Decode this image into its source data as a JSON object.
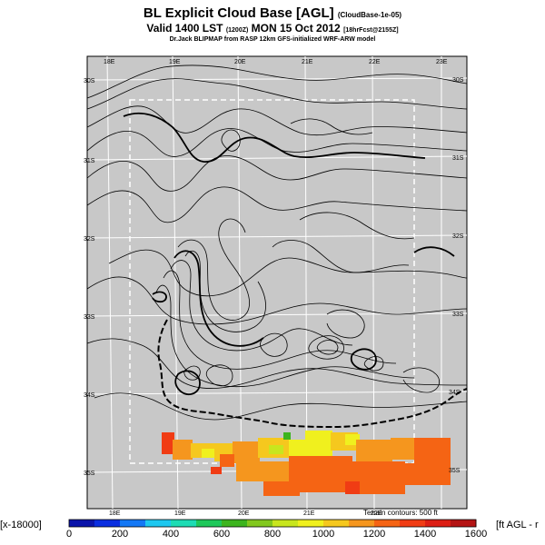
{
  "header": {
    "title": "BL Explicit Cloud Base [AGL]",
    "title_note": "(CloudBase-1e-05)",
    "valid_prefix": "Valid 1400 LST",
    "valid_code": "(1200Z)",
    "valid_date": "MON 15 Oct 2012",
    "valid_suffix": "[18hrFcst@2155Z]",
    "credit": "Dr.Jack BLIPMAP from RASP 12km GFS-initialized WRF-ARW model"
  },
  "map": {
    "background_color": "#c8c8c8",
    "lon_labels_top": [
      "18E",
      "19E",
      "20E",
      "21E",
      "22E",
      "23E"
    ],
    "lon_labels_bottom": [
      "18E",
      "19E",
      "20E",
      "21E",
      "22E"
    ],
    "lat_labels_left": [
      "30S",
      "31S",
      "32S",
      "33S",
      "34S",
      "35S"
    ],
    "lat_labels_right": [
      "30S",
      "31S",
      "32S",
      "33S",
      "34S",
      "35S"
    ],
    "terrain_note": "Terrain contours: 500 ft"
  },
  "colorbar": {
    "left_label": "[x-18000]",
    "right_label": "[ft AGL - r",
    "tick_labels": [
      "0",
      "200",
      "400",
      "600",
      "800",
      "1000",
      "1200",
      "1400",
      "1600"
    ],
    "colors": [
      "#0a14aa",
      "#0a2ee0",
      "#1478f5",
      "#1ec8f0",
      "#1edcb4",
      "#1ec85a",
      "#3cb41e",
      "#82c81e",
      "#c8e61e",
      "#f0f01e",
      "#f5c81e",
      "#f5961e",
      "#f56414",
      "#f03c14",
      "#dc1e14",
      "#b41414"
    ]
  }
}
